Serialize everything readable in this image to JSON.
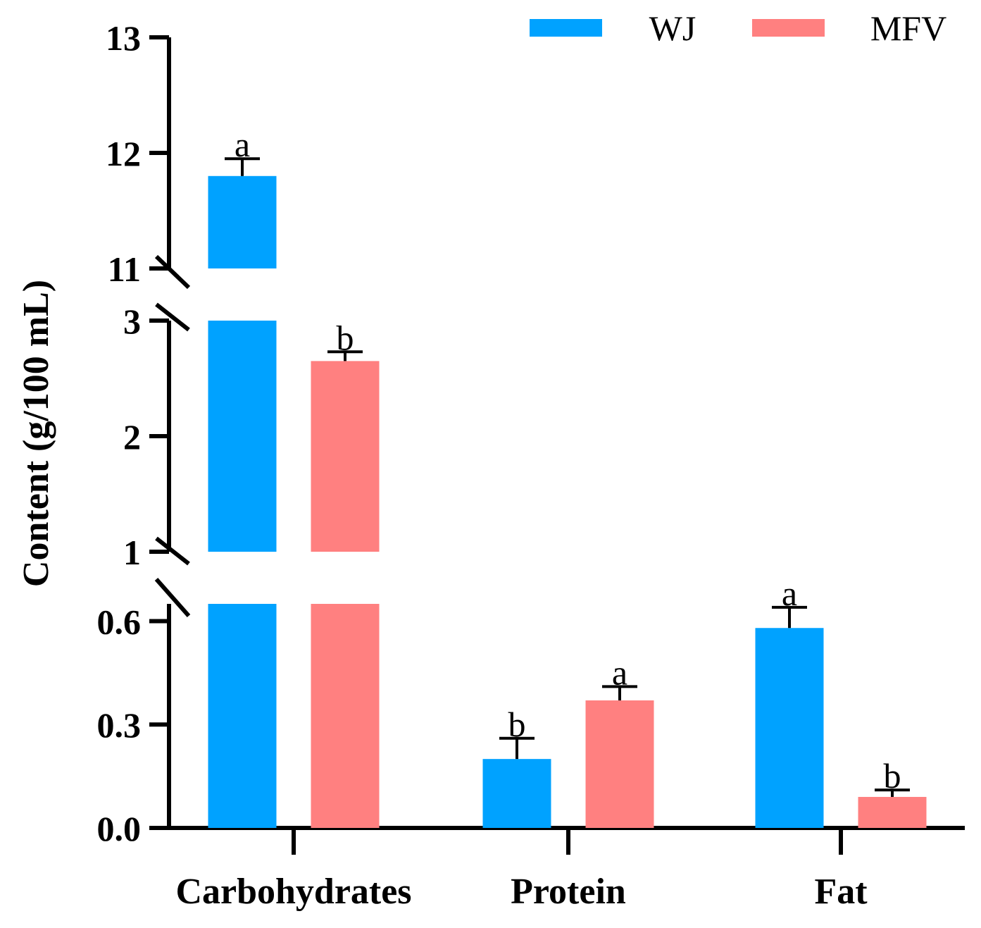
{
  "chart_data": {
    "type": "bar",
    "title": "",
    "xlabel": "",
    "ylabel": "Content (g/100 mL)",
    "categories": [
      "Carbohydrates",
      "Protein",
      "Fat"
    ],
    "series": [
      {
        "name": "WJ",
        "color": "#00A2FF",
        "values": [
          11.8,
          0.2,
          0.58
        ],
        "errors": [
          0.15,
          0.06,
          0.06
        ],
        "significance": [
          "a",
          "b",
          "a"
        ]
      },
      {
        "name": "MFV",
        "color": "#FF8080",
        "values": [
          2.65,
          0.37,
          0.09
        ],
        "errors": [
          0.08,
          0.04,
          0.02
        ],
        "significance": [
          "b",
          "a",
          "b"
        ]
      }
    ],
    "y_axis_broken": true,
    "y_segments": [
      {
        "range": [
          0,
          0.65
        ],
        "ticks": [
          0.0,
          0.3,
          0.6
        ],
        "tick_labels": [
          "0.0",
          "0.3",
          "0.6"
        ]
      },
      {
        "range": [
          1,
          3
        ],
        "ticks": [
          1,
          2,
          3
        ],
        "tick_labels": [
          "1",
          "2",
          "3"
        ]
      },
      {
        "range": [
          11,
          13
        ],
        "ticks": [
          11,
          12,
          13
        ],
        "tick_labels": [
          "11",
          "12",
          "13"
        ]
      }
    ],
    "legend_position": "top-right",
    "grid": false
  }
}
